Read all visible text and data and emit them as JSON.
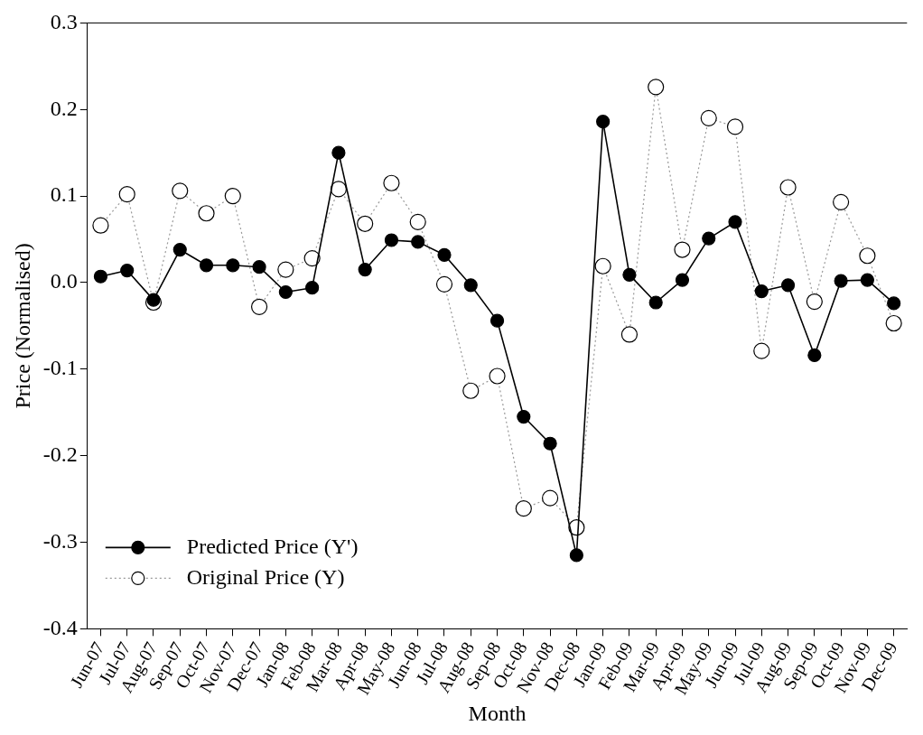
{
  "chart_data": {
    "type": "line",
    "xlabel": "Month",
    "ylabel": "Price (Normalised)",
    "categories": [
      "Jun-07",
      "Jul-07",
      "Aug-07",
      "Sep-07",
      "Oct-07",
      "Nov-07",
      "Dec-07",
      "Jan-08",
      "Feb-08",
      "Mar-08",
      "Apr-08",
      "May-08",
      "Jun-08",
      "Jul-08",
      "Aug-08",
      "Sep-08",
      "Oct-08",
      "Nov-08",
      "Dec-08",
      "Jan-09",
      "Feb-09",
      "Mar-09",
      "Apr-09",
      "May-09",
      "Jun-09",
      "Jul-09",
      "Aug-09",
      "Sep-09",
      "Oct-09",
      "Nov-09",
      "Dec-09"
    ],
    "series": [
      {
        "name": "Predicted Price (Y')",
        "color": "#000000",
        "marker": "circle",
        "line_style": "solid",
        "values": [
          0.007,
          0.014,
          -0.02,
          0.038,
          0.02,
          0.02,
          0.018,
          -0.011,
          -0.006,
          0.15,
          0.015,
          0.049,
          0.047,
          0.032,
          -0.003,
          -0.044,
          -0.155,
          -0.186,
          -0.315,
          0.186,
          0.009,
          -0.023,
          0.003,
          0.051,
          0.07,
          -0.01,
          -0.003,
          -0.084,
          0.002,
          0.003,
          -0.024
        ]
      },
      {
        "name": "Original Price (Y)",
        "color": "#999999",
        "marker": "circle",
        "line_style": "dotted",
        "values": [
          0.066,
          0.102,
          -0.023,
          0.106,
          0.08,
          0.1,
          -0.028,
          0.015,
          0.028,
          0.108,
          0.068,
          0.115,
          0.07,
          -0.002,
          -0.125,
          -0.108,
          -0.261,
          -0.249,
          -0.283,
          0.019,
          -0.06,
          0.226,
          0.038,
          0.19,
          0.18,
          -0.079,
          0.11,
          -0.022,
          0.093,
          0.031,
          -0.047
        ]
      }
    ],
    "ylim": [
      -0.4,
      0.3
    ],
    "yticks": [
      -0.4,
      -0.3,
      -0.2,
      -0.1,
      {
        "value": 0,
        "label": "0.0"
      },
      0.1,
      0.2,
      0.3
    ],
    "legend": "bottom left"
  }
}
